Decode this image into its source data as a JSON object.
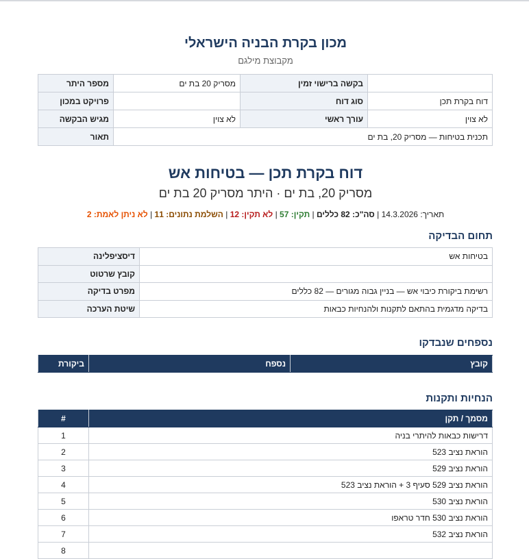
{
  "header": {
    "institute": "מכון בקרת הבניה הישראלי",
    "organization": "מקבוצת מילגם"
  },
  "info": {
    "rows": [
      {
        "v1": "",
        "l1": "בקשה ברישוי זמין",
        "v2": "מסריק 20 בת ים",
        "l2": "מספר היתר"
      },
      {
        "v1": "דוח בקרת תכן",
        "l1": "סוג דוח",
        "v2": "",
        "l2": "פרויקט במכון"
      },
      {
        "v1": "לא צוין",
        "l1": "עורך ראשי",
        "v2": "לא צוין",
        "l2": "מגיש הבקשה"
      }
    ],
    "description_value": "תכנית בטיחות — מסריק 20, בת ים",
    "description_label": "תאור"
  },
  "report": {
    "title": "דוח בקרת תכן — בטיחות אש",
    "subtitle": "מסריק 20, בת ים · היתר מסריק 20 בת ים",
    "date_label": "תאריך:",
    "date": "14.3.2026",
    "total_label": "סה\"כ:",
    "total": "82 כללים",
    "ok_label": "תקין:",
    "ok": "57",
    "fail_label": "לא תקין:",
    "fail": "12",
    "missing_label": "השלמת נתונים:",
    "missing": "11",
    "unverifiable_label": "לא ניתן לאמת:",
    "unverifiable": "2",
    "colors": {
      "ok": "#2e7d32",
      "fail": "#b71c1c",
      "missing": "#8a4b00",
      "unverifiable": "#e65100"
    }
  },
  "scope": {
    "heading": "תחום הבדיקה",
    "rows": [
      {
        "label": "דיסציפלינה",
        "value": "בטיחות אש"
      },
      {
        "label": "קובץ שרטוט",
        "value": ""
      },
      {
        "label": "מפרט בדיקה",
        "value": "רשימת ביקורת כיבוי אש — בניין גבוה מגורים — 82 כללים"
      },
      {
        "label": "שיטת הערכה",
        "value": "בדיקה מדגמית בהתאם לתקנות ולהנחיות כבאות"
      }
    ]
  },
  "appendices": {
    "heading": "נספחים שנבדקו",
    "columns": [
      "קובץ",
      "נספח",
      "ביקורת"
    ]
  },
  "standards": {
    "heading": "הנחיות ותקנות",
    "columns": [
      "מסמך / תקן",
      "#"
    ],
    "rows": [
      {
        "n": "1",
        "doc": "דרישות כבאות להיתרי בניה"
      },
      {
        "n": "2",
        "doc": "הוראת נציב 523"
      },
      {
        "n": "3",
        "doc": "הוראת נציב 529"
      },
      {
        "n": "4",
        "doc": "הוראת נציב 529 סעיף 3 + הוראת נציב 523"
      },
      {
        "n": "5",
        "doc": "הוראת נציב 530"
      },
      {
        "n": "6",
        "doc": "הוראת נציב 530 חדר טראפו"
      },
      {
        "n": "7",
        "doc": "הוראת נציב 532"
      },
      {
        "n": "8",
        "doc": ""
      }
    ]
  }
}
